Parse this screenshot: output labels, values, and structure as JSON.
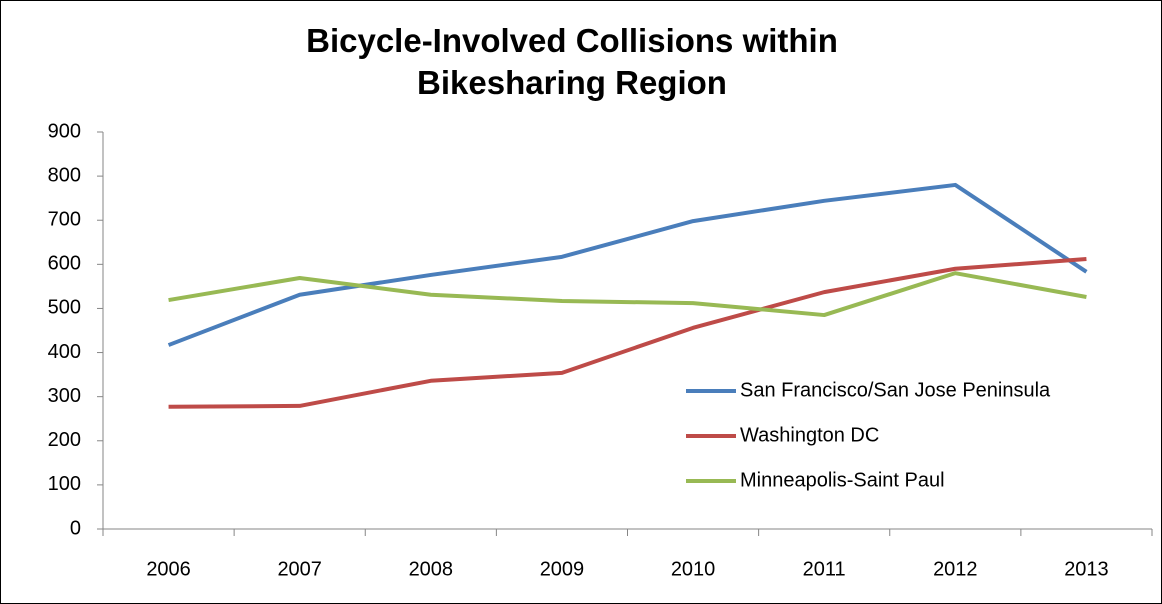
{
  "chart_data": {
    "type": "line",
    "title": "Bicycle-Involved Collisions within Bikesharing Region",
    "categories": [
      "2006",
      "2007",
      "2008",
      "2009",
      "2010",
      "2011",
      "2012",
      "2013"
    ],
    "series": [
      {
        "name": "San Francisco/San Jose Peninsula",
        "color": "#4a7ebb",
        "values": [
          417,
          531,
          576,
          617,
          698,
          744,
          780,
          583
        ]
      },
      {
        "name": "Washington DC",
        "color": "#be4b48",
        "values": [
          277,
          279,
          336,
          354,
          456,
          537,
          590,
          612
        ]
      },
      {
        "name": "Minneapolis-Saint Paul",
        "color": "#98b954",
        "values": [
          519,
          569,
          531,
          517,
          512,
          485,
          580,
          526
        ]
      }
    ],
    "ylim": [
      0,
      900
    ],
    "yticks": [
      0,
      100,
      200,
      300,
      400,
      500,
      600,
      700,
      800,
      900
    ],
    "grid": false,
    "legend": "right"
  }
}
